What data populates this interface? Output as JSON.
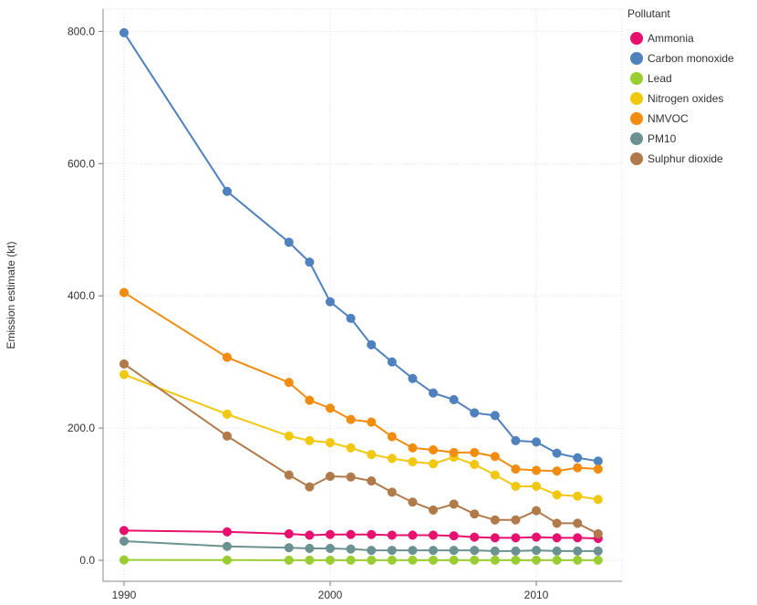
{
  "chart_data": {
    "type": "line",
    "ylabel": "Emission estimate (kt)",
    "xlabel": "",
    "xlim": [
      1990,
      2013
    ],
    "ylim": [
      0,
      800
    ],
    "x_ticks": [
      1990,
      2000,
      2010
    ],
    "y_ticks": [
      0,
      200,
      400,
      600,
      800
    ],
    "y_tick_labels": [
      "0.0",
      "200.0",
      "400.0",
      "600.0",
      "800.0"
    ],
    "grid": true,
    "legend": {
      "title": "Pollutant",
      "position": "top-right"
    },
    "x": [
      1990,
      1995,
      1998,
      1999,
      2000,
      2001,
      2002,
      2003,
      2004,
      2005,
      2006,
      2007,
      2008,
      2009,
      2010,
      2011,
      2012,
      2013
    ],
    "series": [
      {
        "name": "Ammonia",
        "color": "#e8106f",
        "values": [
          45,
          43,
          40,
          38,
          39,
          39,
          39,
          38,
          38,
          38,
          37,
          35,
          34,
          34,
          35,
          34,
          34,
          33
        ]
      },
      {
        "name": "Carbon monoxide",
        "color": "#4e81bd",
        "values": [
          798,
          558,
          481,
          451,
          391,
          366,
          326,
          300,
          275,
          253,
          243,
          223,
          219,
          181,
          179,
          162,
          155,
          150
        ]
      },
      {
        "name": "Lead",
        "color": "#9acd32",
        "values": [
          0.5,
          0.3,
          0.2,
          0.2,
          0.2,
          0.2,
          0.2,
          0.2,
          0.2,
          0.2,
          0.2,
          0.2,
          0.2,
          0.2,
          0.2,
          0.2,
          0.2,
          0.2
        ]
      },
      {
        "name": "Nitrogen oxides",
        "color": "#f1c80f",
        "values": [
          281,
          221,
          188,
          181,
          178,
          170,
          160,
          154,
          149,
          146,
          156,
          145,
          129,
          112,
          112,
          99,
          97,
          92
        ]
      },
      {
        "name": "NMVOC",
        "color": "#f28c0f",
        "values": [
          405,
          307,
          269,
          242,
          230,
          213,
          209,
          187,
          170,
          167,
          163,
          163,
          157,
          138,
          136,
          135,
          140,
          138
        ]
      },
      {
        "name": "PM10",
        "color": "#6b9291",
        "values": [
          29,
          21,
          19,
          18,
          18,
          17,
          15,
          15,
          15,
          15,
          15,
          15,
          14,
          14,
          15,
          14,
          14,
          14
        ]
      },
      {
        "name": "Sulphur dioxide",
        "color": "#b07a4a",
        "values": [
          297,
          188,
          129,
          111,
          127,
          126,
          120,
          103,
          88,
          76,
          85,
          70,
          61,
          61,
          75,
          56,
          56,
          40
        ]
      }
    ]
  }
}
